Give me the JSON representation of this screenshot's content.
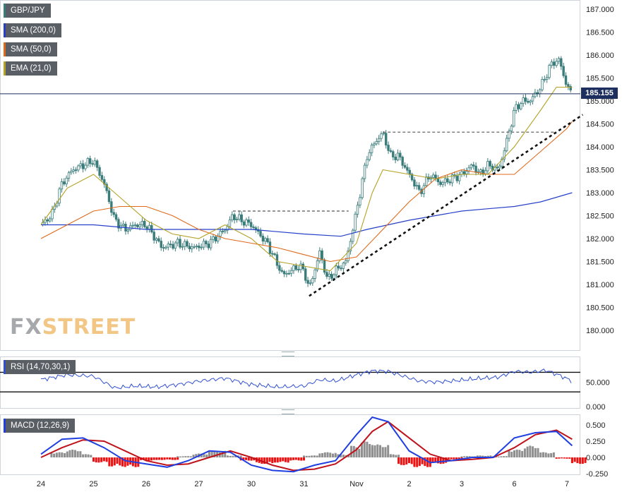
{
  "symbol": "GBP/JPY",
  "legend": {
    "sma200": "SMA (200,0)",
    "sma50": "SMA (50,0)",
    "ema21": "EMA (21,0)",
    "rsi": "RSI (14,70,30,1)",
    "macd": "MACD (12,26,9)"
  },
  "colors": {
    "candle": "#3a7c7a",
    "sma200": "#2740c9",
    "sma50": "#e06a1c",
    "ema21": "#b5a227",
    "rsi_line": "#3050d0",
    "macd_line": "#1f3fe0",
    "signal_line": "#c0121a",
    "hist_pos": "#8f8f8f",
    "hist_neg": "#ee1111",
    "price_tag": "#1c2f5e"
  },
  "current_price": "185.155",
  "logo": {
    "fx": "FX",
    "street": "STREET"
  },
  "chart_data": [
    {
      "type": "line",
      "title": "GBP/JPY",
      "x_labels": [
        "24",
        "25",
        "26",
        "27",
        "30",
        "31",
        "Nov",
        "2",
        "3",
        "6",
        "7"
      ],
      "price_ticks": [
        "187.000",
        "186.500",
        "186.000",
        "185.500",
        "185.000",
        "184.500",
        "184.000",
        "183.500",
        "183.000",
        "182.500",
        "182.000",
        "181.500",
        "181.000",
        "180.500",
        "180.000"
      ],
      "ylim": [
        179.5,
        187.2
      ],
      "price_series": [
        [
          0,
          182.3
        ],
        [
          0.2,
          182.5
        ],
        [
          0.4,
          183.2
        ],
        [
          0.6,
          183.5
        ],
        [
          0.8,
          183.6
        ],
        [
          1.0,
          183.7
        ],
        [
          1.2,
          183.2
        ],
        [
          1.4,
          182.4
        ],
        [
          1.6,
          182.2
        ],
        [
          1.8,
          182.3
        ],
        [
          2.0,
          182.3
        ],
        [
          2.3,
          181.8
        ],
        [
          2.6,
          181.9
        ],
        [
          2.9,
          181.8
        ],
        [
          3.2,
          181.9
        ],
        [
          3.5,
          182.2
        ],
        [
          3.65,
          182.5
        ],
        [
          3.8,
          182.4
        ],
        [
          4.0,
          182.3
        ],
        [
          4.3,
          181.9
        ],
        [
          4.6,
          181.2
        ],
        [
          4.9,
          181.4
        ],
        [
          5.0,
          181.3
        ],
        [
          5.1,
          180.9
        ],
        [
          5.3,
          181.7
        ],
        [
          5.45,
          181.1
        ],
        [
          5.6,
          181.3
        ],
        [
          5.8,
          181.5
        ],
        [
          6.0,
          182.6
        ],
        [
          6.2,
          183.8
        ],
        [
          6.35,
          184.1
        ],
        [
          6.5,
          184.3
        ],
        [
          6.65,
          183.8
        ],
        [
          6.8,
          183.8
        ],
        [
          7.0,
          183.4
        ],
        [
          7.2,
          183.0
        ],
        [
          7.4,
          183.4
        ],
        [
          7.6,
          183.2
        ],
        [
          7.8,
          183.3
        ],
        [
          8.0,
          183.4
        ],
        [
          8.2,
          183.6
        ],
        [
          8.35,
          183.4
        ],
        [
          8.5,
          183.6
        ],
        [
          8.7,
          183.5
        ],
        [
          8.85,
          184.1
        ],
        [
          9.0,
          184.8
        ],
        [
          9.15,
          185.0
        ],
        [
          9.3,
          185.0
        ],
        [
          9.5,
          185.3
        ],
        [
          9.7,
          185.8
        ],
        [
          9.85,
          185.9
        ],
        [
          9.95,
          185.5
        ],
        [
          10.05,
          185.2
        ],
        [
          10.1,
          185.155
        ]
      ],
      "sma200": [
        [
          0,
          182.3
        ],
        [
          1,
          182.3
        ],
        [
          2,
          182.2
        ],
        [
          3,
          182.2
        ],
        [
          4,
          182.2
        ],
        [
          5,
          182.1
        ],
        [
          5.7,
          182.05
        ],
        [
          6.2,
          182.2
        ],
        [
          7,
          182.4
        ],
        [
          7.5,
          182.5
        ],
        [
          8,
          182.6
        ],
        [
          8.5,
          182.65
        ],
        [
          9,
          182.7
        ],
        [
          9.5,
          182.8
        ],
        [
          10.1,
          183.0
        ]
      ],
      "sma50": [
        [
          0,
          182.0
        ],
        [
          0.5,
          182.3
        ],
        [
          1,
          182.6
        ],
        [
          1.5,
          182.7
        ],
        [
          2,
          182.7
        ],
        [
          2.5,
          182.5
        ],
        [
          3,
          182.2
        ],
        [
          3.5,
          182.0
        ],
        [
          4,
          181.9
        ],
        [
          4.5,
          181.8
        ],
        [
          5,
          181.65
        ],
        [
          5.5,
          181.5
        ],
        [
          6,
          181.6
        ],
        [
          6.5,
          182.2
        ],
        [
          7,
          182.8
        ],
        [
          7.5,
          183.3
        ],
        [
          8,
          183.5
        ],
        [
          8.5,
          183.4
        ],
        [
          9.0,
          183.4
        ],
        [
          9.5,
          183.9
        ],
        [
          10.0,
          184.4
        ],
        [
          10.1,
          184.55
        ]
      ],
      "ema21": [
        [
          0,
          182.3
        ],
        [
          0.5,
          183.1
        ],
        [
          1,
          183.4
        ],
        [
          1.5,
          182.9
        ],
        [
          2,
          182.4
        ],
        [
          2.5,
          182.1
        ],
        [
          3,
          182.0
        ],
        [
          3.5,
          182.3
        ],
        [
          4,
          182.0
        ],
        [
          4.5,
          181.5
        ],
        [
          5,
          181.4
        ],
        [
          5.5,
          181.3
        ],
        [
          6,
          181.9
        ],
        [
          6.3,
          183.0
        ],
        [
          6.5,
          183.5
        ],
        [
          7,
          183.4
        ],
        [
          7.5,
          183.3
        ],
        [
          8,
          183.4
        ],
        [
          8.5,
          183.4
        ],
        [
          9,
          184.0
        ],
        [
          9.5,
          184.8
        ],
        [
          9.8,
          185.3
        ],
        [
          10.1,
          185.3
        ]
      ],
      "trendline": [
        [
          5.1,
          180.75
        ],
        [
          10.3,
          184.7
        ]
      ],
      "resistance_lines": [
        {
          "x": [
            3.65,
            5.85
          ],
          "y": 182.6
        },
        {
          "x": [
            6.5,
            9.8
          ],
          "y": 184.32
        }
      ],
      "current_level": 185.155
    },
    {
      "type": "line",
      "title": "RSI (14,70,30,1)",
      "ticks": [
        "50.000",
        "0.000"
      ],
      "levels": [
        70,
        30
      ],
      "ylim": [
        0,
        100
      ],
      "values": [
        [
          0,
          55
        ],
        [
          0.5,
          65
        ],
        [
          1.0,
          62
        ],
        [
          1.4,
          38
        ],
        [
          1.8,
          42
        ],
        [
          2.2,
          40
        ],
        [
          2.6,
          45
        ],
        [
          3.0,
          52
        ],
        [
          3.5,
          58
        ],
        [
          4.0,
          45
        ],
        [
          4.5,
          40
        ],
        [
          5.0,
          42
        ],
        [
          5.3,
          55
        ],
        [
          5.6,
          52
        ],
        [
          6.0,
          65
        ],
        [
          6.3,
          73
        ],
        [
          6.6,
          72
        ],
        [
          6.9,
          62
        ],
        [
          7.2,
          52
        ],
        [
          7.5,
          50
        ],
        [
          7.8,
          52
        ],
        [
          8.1,
          55
        ],
        [
          8.4,
          58
        ],
        [
          8.7,
          60
        ],
        [
          9.0,
          72
        ],
        [
          9.3,
          70
        ],
        [
          9.6,
          74
        ],
        [
          9.9,
          62
        ],
        [
          10.1,
          52
        ]
      ]
    },
    {
      "type": "line",
      "title": "MACD (12,26,9)",
      "ticks": [
        "0.500",
        "0.250",
        "0.000",
        "-0.250"
      ],
      "ylim": [
        -0.35,
        0.72
      ],
      "macd": [
        [
          0,
          0.05
        ],
        [
          0.4,
          0.28
        ],
        [
          0.8,
          0.3
        ],
        [
          1.2,
          0.15
        ],
        [
          1.6,
          -0.05
        ],
        [
          2.0,
          -0.1
        ],
        [
          2.4,
          -0.15
        ],
        [
          2.8,
          -0.05
        ],
        [
          3.2,
          0.1
        ],
        [
          3.6,
          0.08
        ],
        [
          4.0,
          -0.12
        ],
        [
          4.4,
          -0.2
        ],
        [
          4.8,
          -0.22
        ],
        [
          5.2,
          -0.12
        ],
        [
          5.6,
          -0.05
        ],
        [
          6.0,
          0.35
        ],
        [
          6.3,
          0.62
        ],
        [
          6.6,
          0.55
        ],
        [
          7.0,
          0.1
        ],
        [
          7.4,
          -0.08
        ],
        [
          7.8,
          -0.05
        ],
        [
          8.2,
          0.0
        ],
        [
          8.6,
          0.0
        ],
        [
          9.0,
          0.3
        ],
        [
          9.4,
          0.38
        ],
        [
          9.8,
          0.4
        ],
        [
          10.1,
          0.18
        ]
      ],
      "signal": [
        [
          0,
          0.0
        ],
        [
          0.4,
          0.15
        ],
        [
          0.8,
          0.27
        ],
        [
          1.2,
          0.25
        ],
        [
          1.6,
          0.1
        ],
        [
          2.0,
          -0.05
        ],
        [
          2.4,
          -0.12
        ],
        [
          2.8,
          -0.1
        ],
        [
          3.2,
          0.0
        ],
        [
          3.6,
          0.1
        ],
        [
          4.0,
          0.0
        ],
        [
          4.4,
          -0.12
        ],
        [
          4.8,
          -0.2
        ],
        [
          5.2,
          -0.18
        ],
        [
          5.6,
          -0.1
        ],
        [
          6.0,
          0.12
        ],
        [
          6.3,
          0.4
        ],
        [
          6.6,
          0.55
        ],
        [
          7.0,
          0.3
        ],
        [
          7.4,
          0.05
        ],
        [
          7.8,
          -0.05
        ],
        [
          8.2,
          -0.03
        ],
        [
          8.6,
          0.0
        ],
        [
          9.0,
          0.15
        ],
        [
          9.4,
          0.35
        ],
        [
          9.8,
          0.42
        ],
        [
          10.1,
          0.28
        ]
      ],
      "histogram": [
        [
          0.2,
          0.08
        ],
        [
          0.5,
          0.12
        ],
        [
          0.8,
          0.05
        ],
        [
          1.0,
          -0.08
        ],
        [
          1.3,
          -0.14
        ],
        [
          1.6,
          -0.15
        ],
        [
          1.9,
          -0.05
        ],
        [
          2.2,
          -0.04
        ],
        [
          2.6,
          0.02
        ],
        [
          2.9,
          0.06
        ],
        [
          3.2,
          0.1
        ],
        [
          3.5,
          0.03
        ],
        [
          3.8,
          -0.05
        ],
        [
          4.1,
          -0.1
        ],
        [
          4.4,
          -0.08
        ],
        [
          4.7,
          -0.05
        ],
        [
          5.0,
          0.03
        ],
        [
          5.3,
          0.08
        ],
        [
          5.6,
          0.05
        ],
        [
          5.9,
          0.18
        ],
        [
          6.1,
          0.25
        ],
        [
          6.3,
          0.2
        ],
        [
          6.6,
          0.05
        ],
        [
          6.8,
          -0.12
        ],
        [
          7.1,
          -0.15
        ],
        [
          7.4,
          -0.1
        ],
        [
          7.7,
          -0.03
        ],
        [
          8.0,
          0.02
        ],
        [
          8.3,
          0.03
        ],
        [
          8.6,
          0.02
        ],
        [
          8.9,
          0.12
        ],
        [
          9.2,
          0.18
        ],
        [
          9.5,
          0.08
        ],
        [
          9.8,
          -0.02
        ],
        [
          10.1,
          -0.1
        ]
      ]
    }
  ]
}
